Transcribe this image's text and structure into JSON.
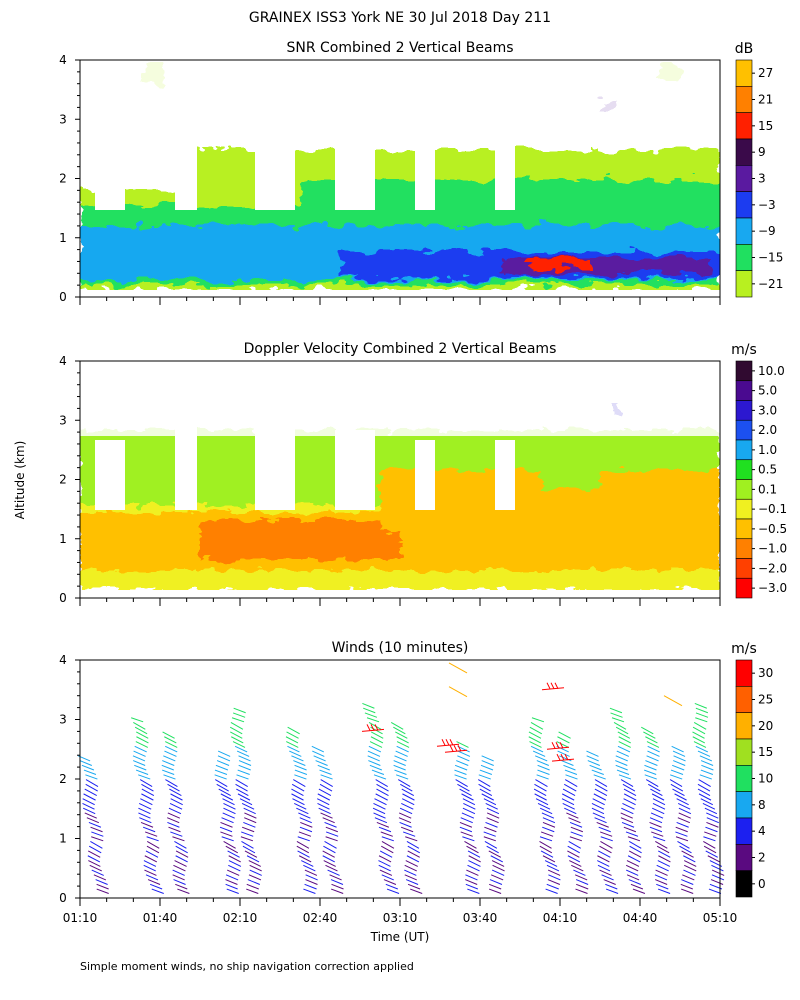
{
  "page_title": "GRAINEX ISS3 York NE  30 Jul 2018 Day 211",
  "footer_note": "Simple moment winds, no ship navigation correction applied",
  "y_axis_label": "Altitude (km)",
  "x_axis_label": "Time (UT)",
  "chart_data": [
    {
      "type": "heatmap",
      "title": "SNR Combined 2 Vertical Beams",
      "xlabel": "",
      "ylabel": "Altitude (km)",
      "x_ticks": [],
      "y_ticks": [
        "0",
        "1",
        "2",
        "3",
        "4"
      ],
      "ylim": [
        0,
        4
      ],
      "colorbar": {
        "unit": "dB",
        "labels": [
          "27",
          "21",
          "15",
          "9",
          "3",
          "−3",
          "−9",
          "−15",
          "−21"
        ],
        "colors": [
          "#ffc000",
          "#ff8000",
          "#ff2000",
          "#3a0a4a",
          "#5a1aa0",
          "#1c3cf0",
          "#18a8f0",
          "#20e060",
          "#b8f020"
        ]
      }
    },
    {
      "type": "heatmap",
      "title": "Doppler Velocity Combined 2 Vertical Beams",
      "xlabel": "",
      "ylabel": "Altitude (km)",
      "x_ticks": [],
      "y_ticks": [
        "0",
        "1",
        "2",
        "3",
        "4"
      ],
      "ylim": [
        0,
        4
      ],
      "colorbar": {
        "unit": "m/s",
        "labels": [
          "10.0",
          "5.0",
          "3.0",
          "2.0",
          "1.0",
          "0.5",
          "0.1",
          "−0.1",
          "−0.5",
          "−1.0",
          "−2.0",
          "−3.0"
        ],
        "colors": [
          "#300a30",
          "#4a0a90",
          "#2c18d0",
          "#1c50f0",
          "#18a8f0",
          "#20e020",
          "#a0f020",
          "#f0f020",
          "#ffc000",
          "#ff8000",
          "#ff4000",
          "#ff0000"
        ]
      }
    },
    {
      "type": "scatter",
      "title": "Winds (10 minutes)",
      "xlabel": "Time (UT)",
      "ylabel": "Altitude (km)",
      "x_ticks": [
        "01:10",
        "01:40",
        "02:10",
        "02:40",
        "03:10",
        "03:40",
        "04:10",
        "04:40",
        "05:10"
      ],
      "y_ticks": [
        "0",
        "1",
        "2",
        "3",
        "4"
      ],
      "ylim": [
        0,
        4
      ],
      "colorbar": {
        "unit": "m/s",
        "labels": [
          "30",
          "25",
          "20",
          "15",
          "10",
          "8",
          "4",
          "2",
          "0"
        ],
        "colors": [
          "#ff0000",
          "#ff6000",
          "#ffb000",
          "#a0e020",
          "#20e060",
          "#18a8f0",
          "#1c20f0",
          "#5a0a80",
          "#000000"
        ]
      }
    }
  ],
  "colors": {
    "axis": "#000000",
    "background": "#ffffff"
  }
}
